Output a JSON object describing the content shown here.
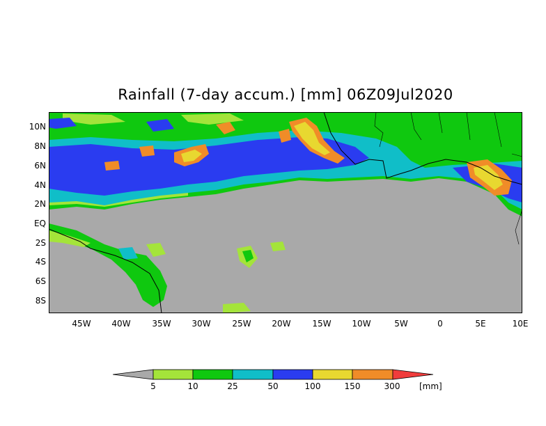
{
  "title": "Rainfall (7-day accum.) [mm] 06Z09Jul2020",
  "map": {
    "lon_range": [
      -49,
      10
    ],
    "lat_range": [
      -9.5,
      11.5
    ],
    "lat_labels": [
      "10N",
      "8N",
      "6N",
      "4N",
      "2N",
      "EQ",
      "2S",
      "4S",
      "6S",
      "8S"
    ],
    "lon_labels": [
      "45W",
      "40W",
      "35W",
      "30W",
      "25W",
      "20W",
      "15W",
      "10W",
      "5W",
      "0",
      "5E",
      "10E"
    ],
    "no_data_color": "#a9a9a9"
  },
  "colorbar": {
    "thresholds": [
      "5",
      "10",
      "25",
      "50",
      "100",
      "150",
      "300"
    ],
    "unit": "[mm]",
    "colors": [
      "#a9a9a9",
      "#a4e43a",
      "#0fc80f",
      "#10bec8",
      "#2a3cf0",
      "#e8d830",
      "#f08c28",
      "#f03c3c"
    ]
  }
}
